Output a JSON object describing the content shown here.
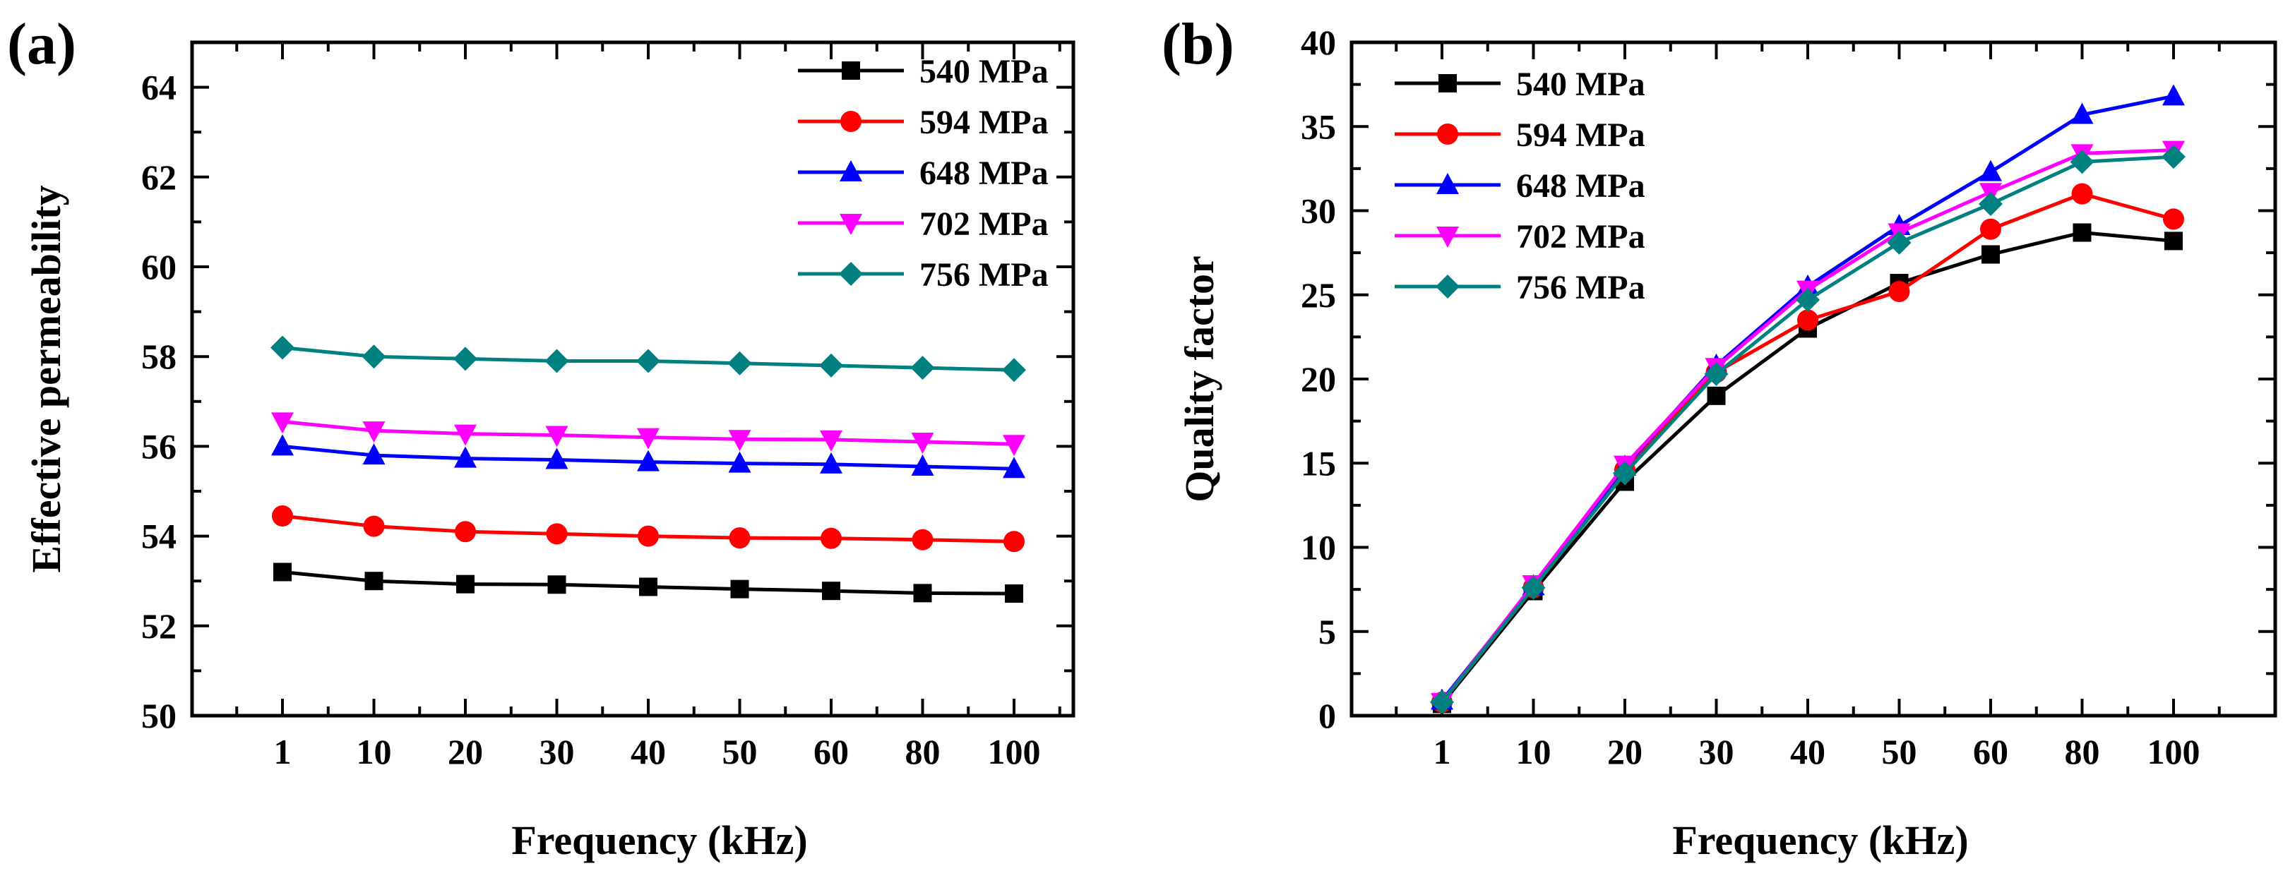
{
  "chart_data": [
    {
      "type": "line",
      "panel_label": "(a)",
      "title": "",
      "xlabel": "Frequency (kHz)",
      "ylabel": "Effective permeability",
      "categories": [
        "1",
        "10",
        "20",
        "30",
        "40",
        "50",
        "60",
        "80",
        "100"
      ],
      "ylim": [
        50,
        65
      ],
      "yticks": [
        "50",
        "52",
        "54",
        "56",
        "58",
        "60",
        "62",
        "64"
      ],
      "legend_position": "top-right",
      "series": [
        {
          "name": "540 MPa",
          "color": "#000000",
          "marker": "square",
          "values": [
            53.2,
            53.0,
            52.93,
            52.92,
            52.87,
            52.82,
            52.78,
            52.73,
            52.72
          ]
        },
        {
          "name": "594 MPa",
          "color": "#ff0000",
          "marker": "circle",
          "values": [
            54.45,
            54.22,
            54.1,
            54.05,
            54.0,
            53.96,
            53.95,
            53.92,
            53.88
          ]
        },
        {
          "name": "648 MPa",
          "color": "#0000ff",
          "marker": "triangle-up",
          "values": [
            56.0,
            55.8,
            55.73,
            55.7,
            55.65,
            55.62,
            55.6,
            55.55,
            55.5
          ]
        },
        {
          "name": "702 MPa",
          "color": "#ff00ff",
          "marker": "triangle-down",
          "values": [
            56.55,
            56.35,
            56.28,
            56.25,
            56.2,
            56.16,
            56.15,
            56.1,
            56.05
          ]
        },
        {
          "name": "756 MPa",
          "color": "#008080",
          "marker": "diamond",
          "values": [
            58.2,
            58.0,
            57.95,
            57.9,
            57.9,
            57.85,
            57.8,
            57.75,
            57.7
          ]
        }
      ]
    },
    {
      "type": "line",
      "panel_label": "(b)",
      "title": "",
      "xlabel": "Frequency (kHz)",
      "ylabel": "Quality factor",
      "categories": [
        "1",
        "10",
        "20",
        "30",
        "40",
        "50",
        "60",
        "80",
        "100"
      ],
      "ylim": [
        0,
        40
      ],
      "yticks": [
        "0",
        "5",
        "10",
        "15",
        "20",
        "25",
        "30",
        "35",
        "40"
      ],
      "legend_position": "top-left",
      "series": [
        {
          "name": "540 MPa",
          "color": "#000000",
          "marker": "square",
          "values": [
            0.7,
            7.4,
            13.9,
            19.0,
            23.0,
            25.7,
            27.4,
            28.7,
            28.2
          ]
        },
        {
          "name": "594 MPa",
          "color": "#ff0000",
          "marker": "circle",
          "values": [
            0.8,
            7.6,
            14.6,
            20.4,
            23.5,
            25.2,
            28.9,
            31.0,
            29.5
          ]
        },
        {
          "name": "648 MPa",
          "color": "#0000ff",
          "marker": "triangle-up",
          "values": [
            0.9,
            7.7,
            14.8,
            20.8,
            25.5,
            29.1,
            32.3,
            35.7,
            36.8
          ]
        },
        {
          "name": "702 MPa",
          "color": "#ff00ff",
          "marker": "triangle-down",
          "values": [
            0.8,
            7.8,
            14.9,
            20.7,
            25.3,
            28.7,
            31.1,
            33.4,
            33.6
          ]
        },
        {
          "name": "756 MPa",
          "color": "#008080",
          "marker": "diamond",
          "values": [
            0.8,
            7.6,
            14.4,
            20.3,
            24.7,
            28.1,
            30.4,
            32.9,
            33.2
          ]
        }
      ]
    }
  ]
}
